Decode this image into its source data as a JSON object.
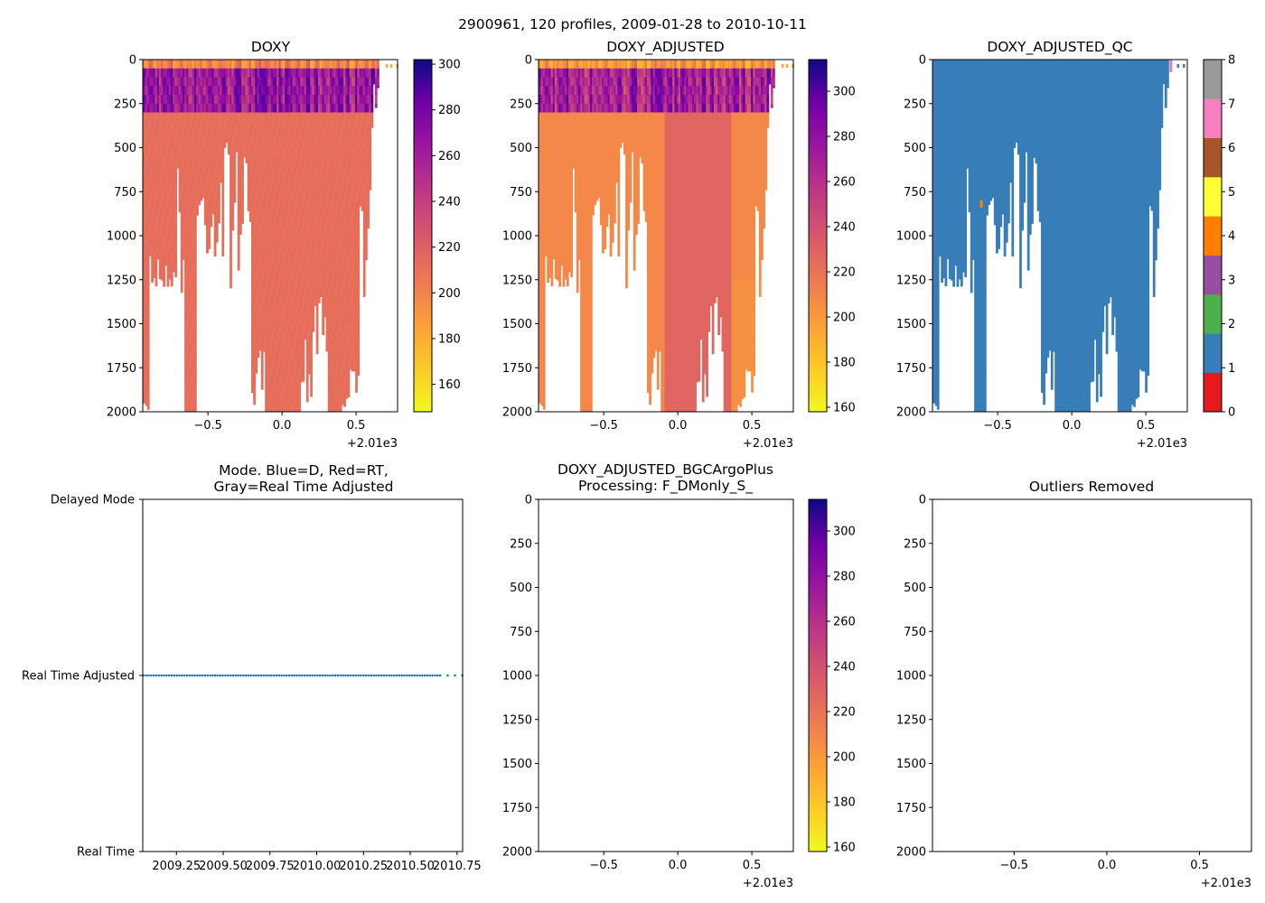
{
  "suptitle": "2900961, 120 profiles, 2009-01-28 to 2010-10-11",
  "offset_label": "+2.01e3",
  "colors": {
    "qc_good": "#377eb8",
    "mode_points": "#1f77b4",
    "qc_orange": "#ff7f00",
    "qc_magenta": "#e377c2"
  },
  "chart_data": [
    {
      "id": "doxy",
      "type": "heatmap",
      "title": "DOXY",
      "x_ticks": [
        "−0.5",
        "0.0",
        "0.5"
      ],
      "x_tick_values": [
        -0.5,
        0.0,
        0.5
      ],
      "xlim": [
        -0.94,
        0.78
      ],
      "y_ticks": [
        "0",
        "250",
        "500",
        "750",
        "1000",
        "1250",
        "1500",
        "1750",
        "2000"
      ],
      "y_tick_values": [
        0,
        250,
        500,
        750,
        1000,
        1250,
        1500,
        1750,
        2000
      ],
      "ylim": [
        2000,
        0
      ],
      "colormap": "plasma_r",
      "colorbar": {
        "min": 148,
        "max": 302,
        "ticks": [
          "160",
          "180",
          "200",
          "220",
          "240",
          "260",
          "280",
          "300"
        ],
        "tick_values": [
          160,
          180,
          200,
          220,
          240,
          260,
          280,
          300
        ]
      }
    },
    {
      "id": "doxy_adjusted",
      "type": "heatmap",
      "title": "DOXY_ADJUSTED",
      "x_ticks": [
        "−0.5",
        "0.0",
        "0.5"
      ],
      "x_tick_values": [
        -0.5,
        0.0,
        0.5
      ],
      "xlim": [
        -0.94,
        0.78
      ],
      "y_ticks": [
        "0",
        "250",
        "500",
        "750",
        "1000",
        "1250",
        "1500",
        "1750",
        "2000"
      ],
      "y_tick_values": [
        0,
        250,
        500,
        750,
        1000,
        1250,
        1500,
        1750,
        2000
      ],
      "ylim": [
        2000,
        0
      ],
      "colormap": "plasma_r",
      "colorbar": {
        "min": 158,
        "max": 314,
        "ticks": [
          "160",
          "180",
          "200",
          "220",
          "240",
          "260",
          "280",
          "300"
        ],
        "tick_values": [
          160,
          180,
          200,
          220,
          240,
          260,
          280,
          300
        ]
      }
    },
    {
      "id": "doxy_adjusted_qc",
      "type": "heatmap",
      "title": "DOXY_ADJUSTED_QC",
      "x_ticks": [
        "−0.5",
        "0.0",
        "0.5"
      ],
      "x_tick_values": [
        -0.5,
        0.0,
        0.5
      ],
      "xlim": [
        -0.94,
        0.78
      ],
      "y_ticks": [
        "0",
        "250",
        "500",
        "750",
        "1000",
        "1250",
        "1500",
        "1750",
        "2000"
      ],
      "y_tick_values": [
        0,
        250,
        500,
        750,
        1000,
        1250,
        1500,
        1750,
        2000
      ],
      "ylim": [
        2000,
        0
      ],
      "colorbar": {
        "min": 0,
        "max": 8,
        "ticks": [
          "0",
          "1",
          "2",
          "3",
          "4",
          "5",
          "6",
          "7",
          "8"
        ],
        "tick_values": [
          0,
          1,
          2,
          3,
          4,
          5,
          6,
          7,
          8
        ],
        "colors": [
          "#e41a1c",
          "#377eb8",
          "#4daf4a",
          "#984ea3",
          "#ff7f00",
          "#ffff33",
          "#a65628",
          "#f781bf",
          "#999999"
        ]
      }
    },
    {
      "id": "mode",
      "type": "scatter",
      "title": "Mode. Blue=D, Red=RT,",
      "title_line2": "Gray=Real Time Adjusted",
      "y_categories": [
        "Real Time",
        "Real Time Adjusted",
        "Delayed Mode"
      ],
      "x_ticks": [
        "2009.25",
        "2009.50",
        "2009.75",
        "2010.00",
        "2010.25",
        "2010.50",
        "2010.75"
      ],
      "x_tick_values": [
        2009.25,
        2009.5,
        2009.75,
        2010.0,
        2010.25,
        2010.5,
        2010.75
      ],
      "xlim": [
        2009.07,
        2010.78
      ],
      "point_count": 120,
      "x_first": 2009.074,
      "x_last": 2010.778,
      "y_level": "Real Time Adjusted"
    },
    {
      "id": "bgc_plus",
      "type": "heatmap",
      "title": "DOXY_ADJUSTED_BGCArgoPlus",
      "title_line2": "Processing: F_DMonly_S_",
      "x_ticks": [
        "−0.5",
        "0.0",
        "0.5"
      ],
      "x_tick_values": [
        -0.5,
        0.0,
        0.5
      ],
      "xlim": [
        -0.94,
        0.78
      ],
      "y_ticks": [
        "0",
        "250",
        "500",
        "750",
        "1000",
        "1250",
        "1500",
        "1750",
        "2000"
      ],
      "y_tick_values": [
        0,
        250,
        500,
        750,
        1000,
        1250,
        1500,
        1750,
        2000
      ],
      "ylim": [
        2000,
        0
      ],
      "colormap": "plasma_r",
      "colorbar": {
        "min": 158,
        "max": 314,
        "ticks": [
          "160",
          "180",
          "200",
          "220",
          "240",
          "260",
          "280",
          "300"
        ],
        "tick_values": [
          160,
          180,
          200,
          220,
          240,
          260,
          280,
          300
        ]
      }
    },
    {
      "id": "outliers",
      "type": "heatmap",
      "title": "Outliers Removed",
      "x_ticks": [
        "−0.5",
        "0.0",
        "0.5"
      ],
      "x_tick_values": [
        -0.5,
        0.0,
        0.5
      ],
      "xlim": [
        -0.94,
        0.78
      ],
      "y_ticks": [
        "0",
        "250",
        "500",
        "750",
        "1000",
        "1250",
        "1500",
        "1750",
        "2000"
      ],
      "y_tick_values": [
        0,
        250,
        500,
        750,
        1000,
        1250,
        1500,
        1750,
        2000
      ],
      "ylim": [
        2000,
        0
      ]
    }
  ]
}
